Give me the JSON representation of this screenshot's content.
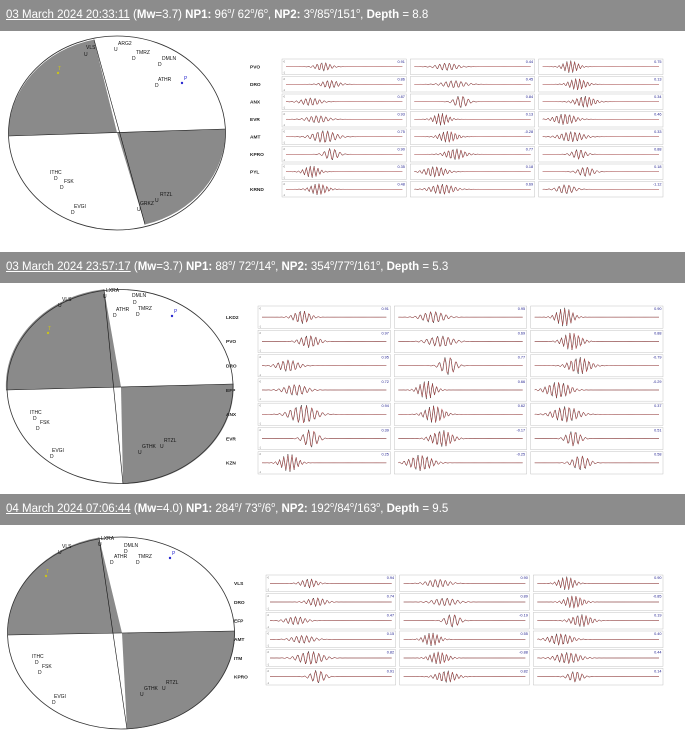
{
  "events": [
    {
      "date": "03 March 2024 20:33:11",
      "mw": "3.7",
      "np1": {
        "strike": "96",
        "dip": "62",
        "rake": "6"
      },
      "np2": {
        "strike": "3",
        "dip": "85",
        "rake": "151"
      },
      "depth": "8.8",
      "p_axis_label": "P",
      "t_axis_label": "T",
      "ticks": [
        "-0",
        "-1"
      ],
      "stations_on_ball": [
        {
          "name": "VLS",
          "pol": "U"
        },
        {
          "name": "ARG2",
          "pol": "U"
        },
        {
          "name": "TMRZ",
          "pol": "D"
        },
        {
          "name": "DMLN",
          "pol": "D"
        },
        {
          "name": "ATHR",
          "pol": "D"
        },
        {
          "name": "ITHC",
          "pol": "D"
        },
        {
          "name": "FSK",
          "pol": "D"
        },
        {
          "name": "EVGI",
          "pol": "D"
        },
        {
          "name": "GRKZ",
          "pol": "U"
        },
        {
          "name": "RTZL",
          "pol": "U"
        }
      ],
      "traces": [
        {
          "station": "PVO",
          "cc": [
            "0.91",
            "0.44",
            "0.75"
          ]
        },
        {
          "station": "DRO",
          "cc": [
            "0.86",
            "0.45",
            "0.13"
          ]
        },
        {
          "station": "ANX",
          "cc": [
            "0.87",
            "0.84",
            "0.34"
          ]
        },
        {
          "station": "EVR",
          "cc": [
            "0.93",
            "0.13",
            "0.46"
          ]
        },
        {
          "station": "AMT",
          "cc": [
            "0.75",
            "-0.28",
            "0.33"
          ]
        },
        {
          "station": "KPRO",
          "cc": [
            "0.90",
            "0.77",
            "0.88"
          ]
        },
        {
          "station": "PYL",
          "cc": [
            "0.35",
            "0.18",
            "0.18"
          ]
        },
        {
          "station": "KRND",
          "cc": [
            "0.48",
            "0.69",
            "-1.12"
          ]
        }
      ]
    },
    {
      "date": "03 March 2024 23:57:17",
      "mw": "3.7",
      "np1": {
        "strike": "88",
        "dip": "72",
        "rake": "14"
      },
      "np2": {
        "strike": "354",
        "dip": "77",
        "rake": "161"
      },
      "depth": "5.3",
      "p_axis_label": "P",
      "t_axis_label": "T",
      "ticks": [
        "-0",
        "-1"
      ],
      "stations_on_ball": [
        {
          "name": "VLS",
          "pol": "U"
        },
        {
          "name": "LXRA",
          "pol": "U"
        },
        {
          "name": "DMLN",
          "pol": "D"
        },
        {
          "name": "ATHR",
          "pol": "D"
        },
        {
          "name": "TMRZ",
          "pol": "D"
        },
        {
          "name": "ITHC",
          "pol": "D"
        },
        {
          "name": "FSK",
          "pol": "D"
        },
        {
          "name": "EVGI",
          "pol": "D"
        },
        {
          "name": "GTHK",
          "pol": "U"
        },
        {
          "name": "RTZL",
          "pol": "U"
        }
      ],
      "traces": [
        {
          "station": "LKD2",
          "cc": [
            "0.91",
            "0.95",
            "0.90"
          ]
        },
        {
          "station": "PVO",
          "cc": [
            "0.97",
            "0.69",
            "0.88"
          ]
        },
        {
          "station": "DRO",
          "cc": [
            "0.95",
            "0.77",
            "-0.79"
          ]
        },
        {
          "station": "EFP",
          "cc": [
            "0.72",
            "0.66",
            "-0.29"
          ]
        },
        {
          "station": "ANX",
          "cc": [
            "0.94",
            "0.62",
            "0.37"
          ]
        },
        {
          "station": "EVR",
          "cc": [
            "0.39",
            "-0.17",
            "0.51"
          ]
        },
        {
          "station": "KZN",
          "cc": [
            "0.25",
            "-0.25",
            "0.58"
          ]
        }
      ]
    },
    {
      "date": "04 March 2024 07:06:44",
      "mw": "4.0",
      "np1": {
        "strike": "284",
        "dip": "73",
        "rake": "6"
      },
      "np2": {
        "strike": "192",
        "dip": "84",
        "rake": "163"
      },
      "depth": "9.5",
      "p_axis_label": "P",
      "t_axis_label": "T",
      "ticks": [
        "-0",
        "-1"
      ],
      "stations_on_ball": [
        {
          "name": "VLS",
          "pol": "U"
        },
        {
          "name": "LXRA",
          "pol": "U"
        },
        {
          "name": "DMLN",
          "pol": "D"
        },
        {
          "name": "ATHR",
          "pol": "D"
        },
        {
          "name": "TMRZ",
          "pol": "D"
        },
        {
          "name": "ITHC",
          "pol": "D"
        },
        {
          "name": "FSK",
          "pol": "D"
        },
        {
          "name": "EVGI",
          "pol": "D"
        },
        {
          "name": "GTHK",
          "pol": "U"
        },
        {
          "name": "RTZL",
          "pol": "U"
        }
      ],
      "traces": [
        {
          "station": "VLS",
          "cc": [
            "0.94",
            "0.90",
            "0.90"
          ]
        },
        {
          "station": "DRO",
          "cc": [
            "0.74",
            "0.89",
            "-0.85"
          ]
        },
        {
          "station": "EFP",
          "cc": [
            "0.47",
            "-0.19",
            "0.19"
          ]
        },
        {
          "station": "AMT",
          "cc": [
            "0.15",
            "0.55",
            "0.40"
          ]
        },
        {
          "station": "ITM",
          "cc": [
            "0.82",
            "-0.88",
            "0.44"
          ]
        },
        {
          "station": "KPRO",
          "cc": [
            "0.91",
            "0.82",
            "0.14"
          ]
        }
      ]
    }
  ]
}
